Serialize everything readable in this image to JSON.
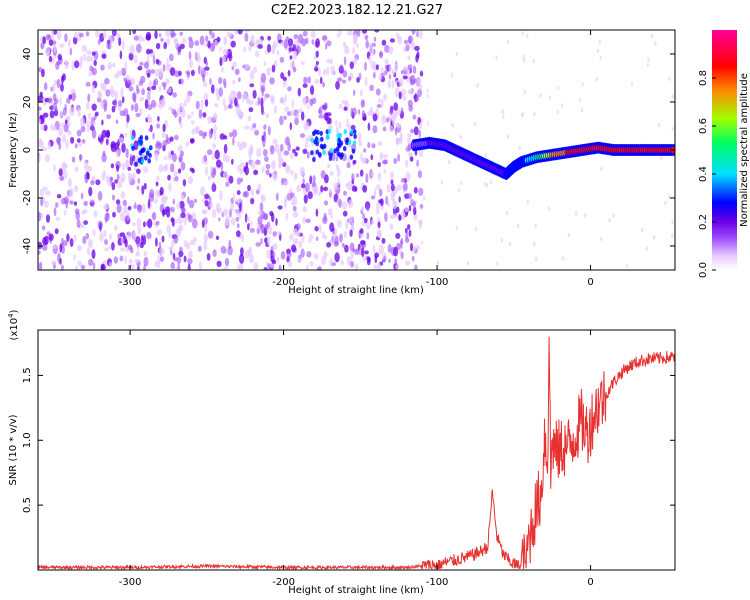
{
  "title": "C2E2.2023.182.12.21.G27",
  "chart_data": [
    {
      "type": "heatmap",
      "xlabel": "Height of straight line (km)",
      "ylabel": "Frequency (Hz)",
      "xlim": [
        -360,
        55
      ],
      "ylim": [
        -50,
        50
      ],
      "x_ticks": [
        -300,
        -200,
        -100,
        0
      ],
      "x_tick_labels": [
        "-300",
        "-200",
        "-100",
        "0"
      ],
      "y_ticks": [
        -40,
        -20,
        0,
        20,
        40
      ],
      "y_tick_labels": [
        "-40",
        "-20",
        "0",
        "20",
        "40"
      ],
      "colorbar": {
        "label": "Normalized spectral amplitude",
        "range": [
          0,
          1
        ],
        "ticks": [
          0.0,
          0.2,
          0.4,
          0.6,
          0.8
        ],
        "tick_labels": [
          "0.0",
          "0.2",
          "0.4",
          "0.6",
          "0.8"
        ],
        "colormap": [
          "#ffffff",
          "#e6c8ff",
          "#a050ff",
          "#6a00e8",
          "#0000ff",
          "#00e0ff",
          "#00ff60",
          "#a0ff00",
          "#ff8800",
          "#ff0000",
          "#ff0099"
        ]
      },
      "noise_region_x": [
        -360,
        -110
      ],
      "ridge": [
        {
          "x": -115,
          "f": 2,
          "amp": 0.22
        },
        {
          "x": -105,
          "f": 3,
          "amp": 0.25
        },
        {
          "x": -95,
          "f": 2,
          "amp": 0.28
        },
        {
          "x": -85,
          "f": -1,
          "amp": 0.28
        },
        {
          "x": -75,
          "f": -4,
          "amp": 0.3
        },
        {
          "x": -65,
          "f": -7,
          "amp": 0.32
        },
        {
          "x": -55,
          "f": -10,
          "amp": 0.35
        },
        {
          "x": -50,
          "f": -7,
          "amp": 0.38
        },
        {
          "x": -45,
          "f": -5,
          "amp": 0.4
        },
        {
          "x": -35,
          "f": -3,
          "amp": 0.55
        },
        {
          "x": -25,
          "f": -2,
          "amp": 0.75
        },
        {
          "x": -15,
          "f": -1,
          "amp": 0.85
        },
        {
          "x": -5,
          "f": 0,
          "amp": 0.85
        },
        {
          "x": 5,
          "f": 1,
          "amp": 0.9
        },
        {
          "x": 15,
          "f": 0,
          "amp": 0.9
        },
        {
          "x": 25,
          "f": 0,
          "amp": 0.9
        },
        {
          "x": 35,
          "f": 0,
          "amp": 0.9
        },
        {
          "x": 45,
          "f": 0,
          "amp": 0.9
        },
        {
          "x": 55,
          "f": 0,
          "amp": 0.9
        }
      ],
      "blobs": [
        {
          "x": -292,
          "f": 0,
          "amp": 0.25
        },
        {
          "x": -175,
          "f": 2,
          "amp": 0.22
        },
        {
          "x": -160,
          "f": 2,
          "amp": 0.2
        }
      ]
    },
    {
      "type": "line",
      "xlabel": "Height of straight line (km)",
      "ylabel": "SNR (10 * v/v)",
      "yscale_label": "(x10",
      "yscale_exp": "4",
      "yscale_close": ")",
      "xlim": [
        -360,
        55
      ],
      "ylim": [
        0,
        1.85
      ],
      "x_ticks": [
        -300,
        -200,
        -100,
        0
      ],
      "x_tick_labels": [
        "-300",
        "-200",
        "-100",
        "0"
      ],
      "y_ticks": [
        0.5,
        1.0,
        1.5
      ],
      "y_tick_labels": [
        "0.5",
        "1.0",
        "1.5"
      ],
      "color": "#e83030",
      "series": [
        {
          "x": [
            -360,
            -300,
            -250,
            -200,
            -150,
            -120,
            -100,
            -90,
            -80,
            -72,
            -67,
            -64,
            -61,
            -57,
            -52,
            -47,
            -43,
            -40,
            -36,
            -32,
            -30,
            -28,
            -27,
            -26,
            -25,
            -22,
            -18,
            -14,
            -10,
            -6,
            -2,
            2,
            6,
            10,
            15,
            20,
            25,
            30,
            35,
            40,
            45,
            50,
            55
          ],
          "y": [
            0.02,
            0.02,
            0.03,
            0.02,
            0.02,
            0.02,
            0.04,
            0.07,
            0.1,
            0.14,
            0.18,
            0.6,
            0.26,
            0.12,
            0.06,
            0.03,
            0.05,
            0.25,
            0.45,
            0.6,
            1.05,
            0.8,
            1.85,
            0.7,
            1.0,
            0.9,
            0.95,
            0.95,
            1.05,
            1.15,
            1.05,
            1.2,
            1.3,
            1.35,
            1.45,
            1.52,
            1.57,
            1.6,
            1.62,
            1.63,
            1.63,
            1.64,
            1.64
          ]
        }
      ]
    }
  ]
}
